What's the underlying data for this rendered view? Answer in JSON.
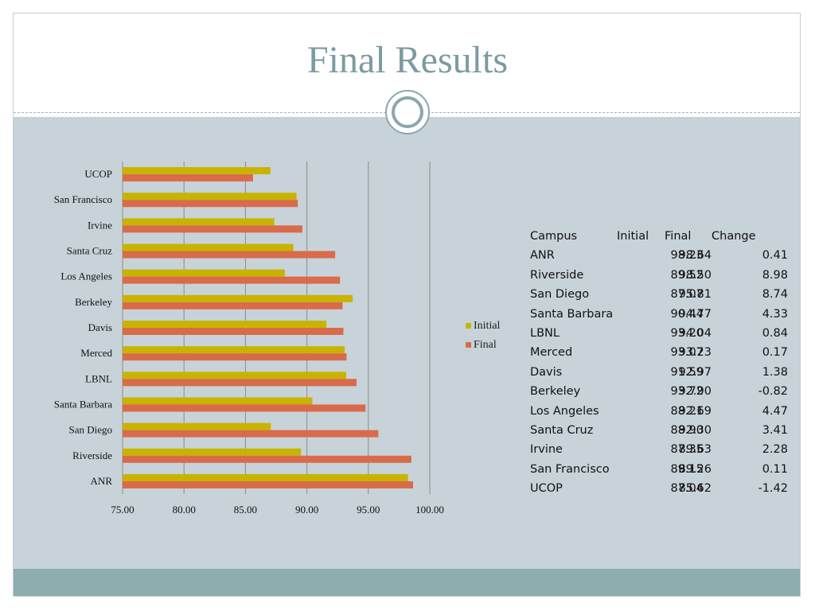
{
  "slide": {
    "title": "Final Results"
  },
  "colors": {
    "initial": "#c8b400",
    "final": "#d96b4a",
    "grid": "#8c8c8c"
  },
  "chart_data": {
    "type": "bar",
    "orientation": "horizontal",
    "categories": [
      "UCOP",
      "San Francisco",
      "Irvine",
      "Santa Cruz",
      "Los Angeles",
      "Berkeley",
      "Davis",
      "Merced",
      "LBNL",
      "Santa Barbara",
      "San Diego",
      "Riverside",
      "ANR"
    ],
    "series": [
      {
        "name": "Initial",
        "values": [
          87.04,
          89.15,
          87.35,
          88.9,
          88.21,
          93.72,
          91.59,
          93.07,
          93.2,
          90.44,
          87.07,
          89.52,
          98.23
        ]
      },
      {
        "name": "Final",
        "values": [
          85.62,
          89.26,
          89.63,
          92.3,
          92.69,
          92.9,
          92.97,
          93.23,
          94.04,
          94.77,
          95.81,
          98.5,
          98.64
        ]
      }
    ],
    "xlim": [
      75,
      100
    ],
    "x_ticks": [
      "75.00",
      "80.00",
      "85.00",
      "90.00",
      "95.00",
      "100.00"
    ],
    "grid": true,
    "legend_position": "right"
  },
  "table": {
    "headers": [
      "Campus",
      "Initial",
      "Final",
      "Change"
    ],
    "rows": [
      [
        "ANR",
        "98.23",
        "98.64",
        "0.41"
      ],
      [
        "Riverside",
        "89.52",
        "98.50",
        "8.98"
      ],
      [
        "San Diego",
        "87.07",
        "95.81",
        "8.74"
      ],
      [
        "Santa Barbara",
        "90.44",
        "94.77",
        "4.33"
      ],
      [
        "LBNL",
        "93.20",
        "94.04",
        "0.84"
      ],
      [
        "Merced",
        "93.07",
        "93.23",
        "0.17"
      ],
      [
        "Davis",
        "91.59",
        "92.97",
        "1.38"
      ],
      [
        "Berkeley",
        "93.72",
        "92.90",
        "-0.82"
      ],
      [
        "Los Angeles",
        "88.21",
        "92.69",
        "4.47"
      ],
      [
        "Santa Cruz",
        "88.90",
        "92.30",
        "3.41"
      ],
      [
        "Irvine",
        "87.35",
        "89.63",
        "2.28"
      ],
      [
        "San Francisco",
        "89.15",
        "89.26",
        "0.11"
      ],
      [
        "UCOP",
        "87.04",
        "85.62",
        "-1.42"
      ]
    ]
  }
}
